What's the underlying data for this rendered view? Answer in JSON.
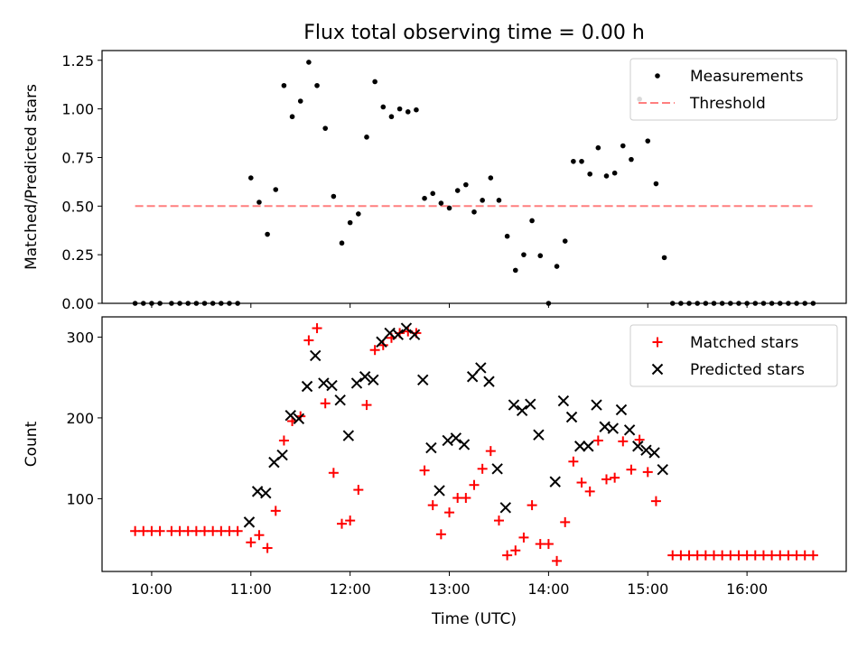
{
  "figure": {
    "title": "Flux total observing time = 0.00 h"
  },
  "colors": {
    "measurement": "#000000",
    "threshold": "#ff7f7f",
    "matched": "#ff0000",
    "predicted": "#000000"
  },
  "chart_data": [
    {
      "type": "scatter",
      "title": "Flux total observing time = 0.00 h",
      "xlabel": "",
      "ylabel": "Matched/Predicted stars",
      "xlim": [
        "09:30",
        "17:00"
      ],
      "ylim": [
        0,
        1.3
      ],
      "x_ticks": [
        "10:00",
        "11:00",
        "12:00",
        "13:00",
        "14:00",
        "15:00",
        "16:00"
      ],
      "y_ticks": [
        "0.00",
        "0.25",
        "0.50",
        "0.75",
        "1.00",
        "1.25"
      ],
      "legend": {
        "placement": "upper-right",
        "entries": [
          "Measurements",
          "Threshold"
        ]
      },
      "threshold": {
        "name": "Threshold",
        "value": 0.5,
        "x_range": [
          "09:50",
          "16:40"
        ]
      },
      "series": [
        {
          "name": "Measurements",
          "marker": "dot",
          "points": [
            [
              "09:50",
              0
            ],
            [
              "09:55",
              0
            ],
            [
              "10:00",
              0
            ],
            [
              "10:05",
              0
            ],
            [
              "10:12",
              0
            ],
            [
              "10:17",
              0
            ],
            [
              "10:22",
              0
            ],
            [
              "10:27",
              0
            ],
            [
              "10:32",
              0
            ],
            [
              "10:37",
              0
            ],
            [
              "10:42",
              0
            ],
            [
              "10:47",
              0
            ],
            [
              "10:52",
              0
            ],
            [
              "11:00",
              0.645
            ],
            [
              "11:05",
              0.52
            ],
            [
              "11:10",
              0.355
            ],
            [
              "11:15",
              0.585
            ],
            [
              "11:20",
              1.12
            ],
            [
              "11:25",
              0.96
            ],
            [
              "11:30",
              1.04
            ],
            [
              "11:35",
              1.24
            ],
            [
              "11:40",
              1.12
            ],
            [
              "11:45",
              0.9
            ],
            [
              "11:50",
              0.55
            ],
            [
              "11:55",
              0.31
            ],
            [
              "12:00",
              0.415
            ],
            [
              "12:05",
              0.46
            ],
            [
              "12:10",
              0.855
            ],
            [
              "12:15",
              1.14
            ],
            [
              "12:20",
              1.01
            ],
            [
              "12:25",
              0.96
            ],
            [
              "12:30",
              1.0
            ],
            [
              "12:35",
              0.985
            ],
            [
              "12:40",
              0.995
            ],
            [
              "12:45",
              0.54
            ],
            [
              "12:50",
              0.565
            ],
            [
              "12:55",
              0.515
            ],
            [
              "13:00",
              0.49
            ],
            [
              "13:05",
              0.58
            ],
            [
              "13:10",
              0.61
            ],
            [
              "13:15",
              0.47
            ],
            [
              "13:20",
              0.53
            ],
            [
              "13:25",
              0.645
            ],
            [
              "13:30",
              0.53
            ],
            [
              "13:35",
              0.345
            ],
            [
              "13:40",
              0.17
            ],
            [
              "13:45",
              0.25
            ],
            [
              "13:50",
              0.425
            ],
            [
              "13:55",
              0.245
            ],
            [
              "14:00",
              0
            ],
            [
              "14:05",
              0.19
            ],
            [
              "14:10",
              0.32
            ],
            [
              "14:15",
              0.73
            ],
            [
              "14:20",
              0.73
            ],
            [
              "14:25",
              0.665
            ],
            [
              "14:30",
              0.8
            ],
            [
              "14:35",
              0.655
            ],
            [
              "14:40",
              0.67
            ],
            [
              "14:45",
              0.81
            ],
            [
              "14:50",
              0.74
            ],
            [
              "14:55",
              1.05
            ],
            [
              "15:00",
              0.835
            ],
            [
              "15:05",
              0.615
            ],
            [
              "15:10",
              0.235
            ],
            [
              "15:15",
              0
            ],
            [
              "15:20",
              0
            ],
            [
              "15:25",
              0
            ],
            [
              "15:30",
              0
            ],
            [
              "15:35",
              0
            ],
            [
              "15:40",
              0
            ],
            [
              "15:45",
              0
            ],
            [
              "15:50",
              0
            ],
            [
              "15:55",
              0
            ],
            [
              "16:00",
              0
            ],
            [
              "16:05",
              0
            ],
            [
              "16:10",
              0
            ],
            [
              "16:15",
              0
            ],
            [
              "16:20",
              0
            ],
            [
              "16:25",
              0
            ],
            [
              "16:30",
              0
            ],
            [
              "16:35",
              0
            ],
            [
              "16:40",
              0
            ]
          ]
        }
      ]
    },
    {
      "type": "scatter",
      "xlabel": "Time (UTC)",
      "ylabel": "Count",
      "xlim": [
        "09:30",
        "17:00"
      ],
      "ylim": [
        10,
        325
      ],
      "x_ticks": [
        "10:00",
        "11:00",
        "12:00",
        "13:00",
        "14:00",
        "15:00",
        "16:00"
      ],
      "y_ticks": [
        "100",
        "200",
        "300"
      ],
      "legend": {
        "placement": "upper-right",
        "entries": [
          "Matched stars",
          "Predicted stars"
        ]
      },
      "series": [
        {
          "name": "Matched stars",
          "marker": "plus",
          "points": [
            [
              "09:50",
              60
            ],
            [
              "09:55",
              60
            ],
            [
              "10:00",
              60
            ],
            [
              "10:05",
              60
            ],
            [
              "10:12",
              60
            ],
            [
              "10:17",
              60
            ],
            [
              "10:22",
              60
            ],
            [
              "10:27",
              60
            ],
            [
              "10:32",
              60
            ],
            [
              "10:37",
              60
            ],
            [
              "10:42",
              60
            ],
            [
              "10:47",
              60
            ],
            [
              "10:52",
              60
            ],
            [
              "11:00",
              46
            ],
            [
              "11:05",
              55
            ],
            [
              "11:10",
              39
            ],
            [
              "11:15",
              85
            ],
            [
              "11:20",
              172
            ],
            [
              "11:25",
              196
            ],
            [
              "11:30",
              202
            ],
            [
              "11:35",
              296
            ],
            [
              "11:40",
              311
            ],
            [
              "11:45",
              218
            ],
            [
              "11:50",
              132
            ],
            [
              "11:55",
              69
            ],
            [
              "12:00",
              73
            ],
            [
              "12:05",
              111
            ],
            [
              "12:10",
              216
            ],
            [
              "12:15",
              284
            ],
            [
              "12:20",
              290
            ],
            [
              "12:25",
              299
            ],
            [
              "12:30",
              305
            ],
            [
              "12:35",
              307
            ],
            [
              "12:40",
              305
            ],
            [
              "12:45",
              135
            ],
            [
              "12:50",
              92
            ],
            [
              "12:55",
              56
            ],
            [
              "13:00",
              83
            ],
            [
              "13:05",
              101
            ],
            [
              "13:10",
              101
            ],
            [
              "13:15",
              117
            ],
            [
              "13:20",
              137
            ],
            [
              "13:25",
              159
            ],
            [
              "13:30",
              73
            ],
            [
              "13:35",
              30
            ],
            [
              "13:40",
              36
            ],
            [
              "13:45",
              52
            ],
            [
              "13:50",
              92
            ],
            [
              "13:55",
              44
            ],
            [
              "14:00",
              44
            ],
            [
              "14:05",
              23
            ],
            [
              "14:10",
              71
            ],
            [
              "14:15",
              146
            ],
            [
              "14:20",
              120
            ],
            [
              "14:25",
              109
            ],
            [
              "14:30",
              172
            ],
            [
              "14:35",
              124
            ],
            [
              "14:40",
              126
            ],
            [
              "14:45",
              171
            ],
            [
              "14:50",
              136
            ],
            [
              "14:55",
              173
            ],
            [
              "15:00",
              133
            ],
            [
              "15:05",
              97
            ],
            [
              "15:15",
              30
            ],
            [
              "15:20",
              30
            ],
            [
              "15:25",
              30
            ],
            [
              "15:30",
              30
            ],
            [
              "15:35",
              30
            ],
            [
              "15:40",
              30
            ],
            [
              "15:45",
              30
            ],
            [
              "15:50",
              30
            ],
            [
              "15:55",
              30
            ],
            [
              "16:00",
              30
            ],
            [
              "16:05",
              30
            ],
            [
              "16:10",
              30
            ],
            [
              "16:15",
              30
            ],
            [
              "16:20",
              30
            ],
            [
              "16:25",
              30
            ],
            [
              "16:30",
              30
            ],
            [
              "16:35",
              30
            ],
            [
              "16:40",
              30
            ]
          ]
        },
        {
          "name": "Predicted stars",
          "marker": "x",
          "points": [
            [
              "10:59",
              71
            ],
            [
              "11:04",
              109
            ],
            [
              "11:09",
              107
            ],
            [
              "11:14",
              145
            ],
            [
              "11:19",
              154
            ],
            [
              "11:24",
              203
            ],
            [
              "11:29",
              199
            ],
            [
              "11:34",
              239
            ],
            [
              "11:39",
              277
            ],
            [
              "11:44",
              243
            ],
            [
              "11:49",
              240
            ],
            [
              "11:54",
              222
            ],
            [
              "11:59",
              178
            ],
            [
              "12:04",
              243
            ],
            [
              "12:09",
              251
            ],
            [
              "12:14",
              247
            ],
            [
              "12:19",
              294
            ],
            [
              "12:24",
              305
            ],
            [
              "12:29",
              303
            ],
            [
              "12:34",
              311
            ],
            [
              "12:39",
              303
            ],
            [
              "12:44",
              247
            ],
            [
              "12:49",
              163
            ],
            [
              "12:54",
              110
            ],
            [
              "12:59",
              172
            ],
            [
              "13:04",
              175
            ],
            [
              "13:09",
              167
            ],
            [
              "13:14",
              251
            ],
            [
              "13:19",
              262
            ],
            [
              "13:24",
              245
            ],
            [
              "13:29",
              137
            ],
            [
              "13:34",
              89
            ],
            [
              "13:39",
              216
            ],
            [
              "13:44",
              209
            ],
            [
              "13:49",
              217
            ],
            [
              "13:54",
              179
            ],
            [
              "14:04",
              121
            ],
            [
              "14:09",
              221
            ],
            [
              "14:14",
              201
            ],
            [
              "14:19",
              165
            ],
            [
              "14:24",
              165
            ],
            [
              "14:29",
              216
            ],
            [
              "14:34",
              189
            ],
            [
              "14:39",
              187
            ],
            [
              "14:44",
              210
            ],
            [
              "14:49",
              185
            ],
            [
              "14:54",
              165
            ],
            [
              "14:59",
              160
            ],
            [
              "15:04",
              157
            ],
            [
              "15:09",
              136
            ]
          ]
        }
      ]
    }
  ]
}
